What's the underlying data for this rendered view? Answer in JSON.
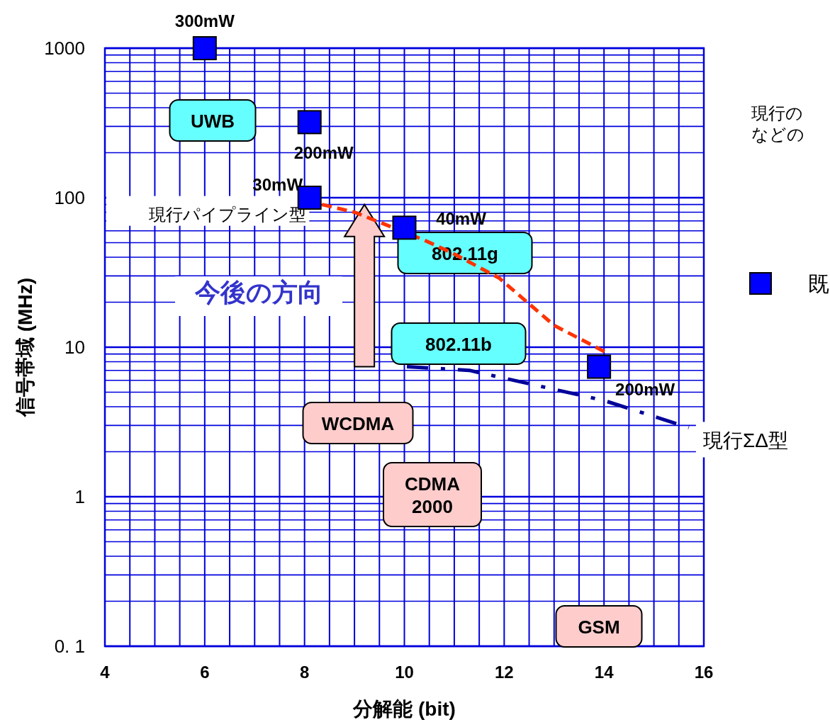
{
  "chart_data": {
    "type": "scatter",
    "xlabel": "分解能 (bit)",
    "ylabel": "信号帯域 (MHz)",
    "log": "y",
    "grid": true,
    "legend": "right",
    "xlim": [
      4,
      16
    ],
    "xticks": [
      4,
      {
        "value": 4.5,
        "label": null
      },
      {
        "value": 5,
        "label": null
      },
      {
        "value": 5.5,
        "label": null
      },
      6,
      {
        "value": 6.5,
        "label": null
      },
      {
        "value": 7,
        "label": null
      },
      {
        "value": 7.5,
        "label": null
      },
      8,
      {
        "value": 8.5,
        "label": null
      },
      {
        "value": 9,
        "label": null
      },
      {
        "value": 9.5,
        "label": null
      },
      10,
      {
        "value": 10.5,
        "label": null
      },
      {
        "value": 11,
        "label": null
      },
      {
        "value": 11.5,
        "label": null
      },
      12,
      {
        "value": 12.5,
        "label": null
      },
      {
        "value": 13,
        "label": null
      },
      {
        "value": 13.5,
        "label": null
      },
      14,
      {
        "value": 14.5,
        "label": null
      },
      {
        "value": 15,
        "label": null
      },
      {
        "value": 15.5,
        "label": null
      },
      16
    ],
    "ylim": [
      0.1,
      1000
    ],
    "yticks": [
      {
        "value": 0.1,
        "label": "0. 1"
      },
      {
        "value": 0.2,
        "label": null
      },
      {
        "value": 0.3,
        "label": null
      },
      {
        "value": 0.4,
        "label": null
      },
      {
        "value": 0.5,
        "label": null
      },
      {
        "value": 0.6,
        "label": null
      },
      {
        "value": 0.7,
        "label": null
      },
      {
        "value": 0.8,
        "label": null
      },
      {
        "value": 0.9,
        "label": null
      },
      1,
      {
        "value": 2,
        "label": null
      },
      {
        "value": 3,
        "label": null
      },
      {
        "value": 4,
        "label": null
      },
      {
        "value": 5,
        "label": null
      },
      {
        "value": 6,
        "label": null
      },
      {
        "value": 7,
        "label": null
      },
      {
        "value": 8,
        "label": null
      },
      {
        "value": 9,
        "label": null
      },
      10,
      {
        "value": 20,
        "label": null
      },
      {
        "value": 30,
        "label": null
      },
      {
        "value": 40,
        "label": null
      },
      {
        "value": 50,
        "label": null
      },
      {
        "value": 60,
        "label": null
      },
      {
        "value": 70,
        "label": null
      },
      {
        "value": 80,
        "label": null
      },
      {
        "value": 90,
        "label": null
      },
      100,
      {
        "value": 200,
        "label": null
      },
      {
        "value": 300,
        "label": null
      },
      {
        "value": 400,
        "label": null
      },
      {
        "value": 500,
        "label": null
      },
      {
        "value": 600,
        "label": null
      },
      {
        "value": 700,
        "label": null
      },
      {
        "value": 800,
        "label": null
      },
      {
        "value": 900,
        "label": null
      },
      1000
    ],
    "series": [
      {
        "name": "既",
        "marker": "square",
        "color": "#0000ff",
        "x": [
          6,
          8.1,
          8.1,
          10,
          13.9
        ],
        "values": [
          1000,
          320,
          100,
          63,
          7.4
        ]
      },
      {
        "name": "現行パイプライン型",
        "type": "line",
        "line_style": "dashed",
        "color": "#ff3300",
        "x": [
          8.35,
          9,
          10.4,
          11,
          11.9,
          13,
          14.1
        ],
        "values": [
          90,
          80,
          52,
          42,
          29,
          14,
          9
        ]
      },
      {
        "name": "現行ΣΔ型",
        "type": "line",
        "line_style": "dashdot",
        "color": "#000099",
        "x": [
          10.05,
          11.3,
          14,
          15.7
        ],
        "values": [
          7.4,
          7,
          4.4,
          2.9
        ]
      }
    ],
    "annotations": [
      {
        "text": "300mW",
        "x": 6,
        "y": 1000
      },
      {
        "text": "200mW",
        "x": 8.1,
        "y": 320
      },
      {
        "text": "30mW",
        "x": 8.1,
        "y": 100
      },
      {
        "text": "40mW",
        "x": 10,
        "y": 63
      },
      {
        "text": "200mW",
        "x": 13.9,
        "y": 7.4
      },
      "UWB",
      "802.11g",
      "802.11b",
      "WCDMA",
      "CDMA\n2000",
      "GSM",
      "今後の方向",
      "現行の",
      "などの"
    ]
  }
}
